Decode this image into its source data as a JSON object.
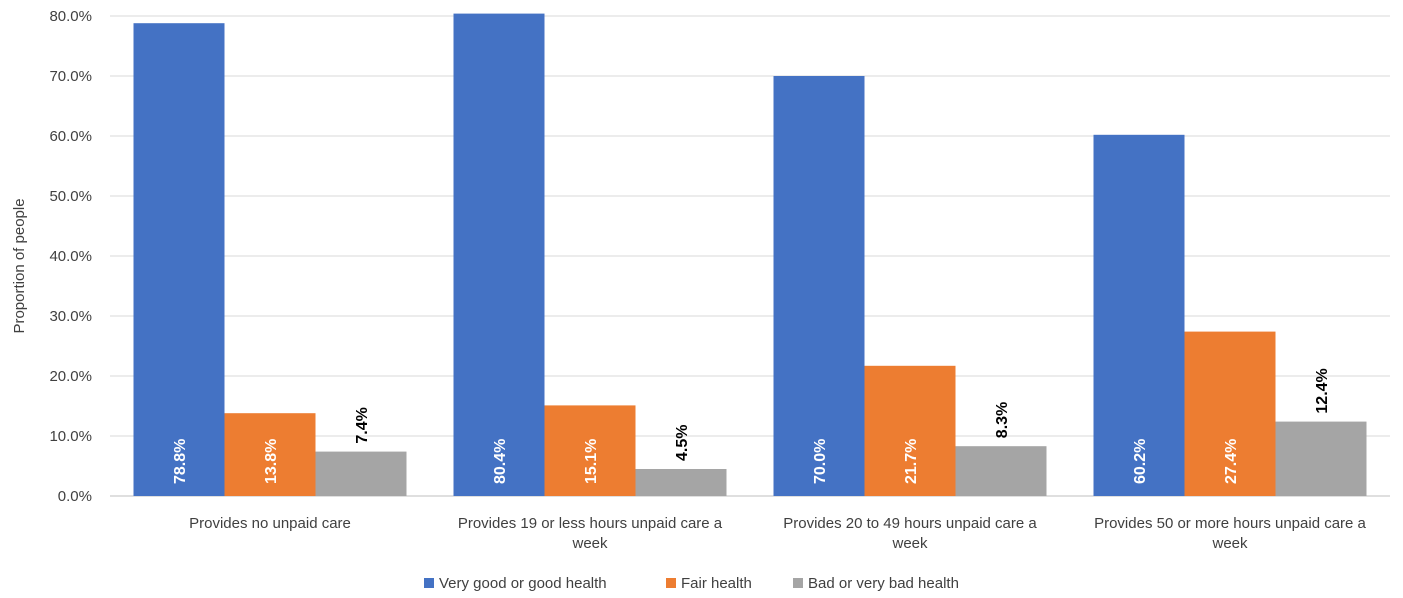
{
  "chart_data": {
    "type": "bar",
    "ylabel": "Proportion of people",
    "ylim": [
      0,
      80
    ],
    "yticks": [
      0,
      10,
      20,
      30,
      40,
      50,
      60,
      70,
      80
    ],
    "grid": true,
    "legend_position": "bottom",
    "categories": [
      [
        "Provides no unpaid care"
      ],
      [
        "Provides 19 or less hours unpaid care a",
        "week"
      ],
      [
        "Provides 20 to 49 hours unpaid care a",
        "week"
      ],
      [
        "Provides 50 or more hours unpaid care a",
        "week"
      ]
    ],
    "series": [
      {
        "name": "Very good or good health",
        "color": "#4472C4",
        "values": [
          78.8,
          80.4,
          70.0,
          60.2
        ],
        "labels": [
          "78.8%",
          "80.4%",
          "70.0%",
          "60.2%"
        ],
        "label_color": "#ffffff",
        "label_inside": true
      },
      {
        "name": "Fair health",
        "color": "#ED7D31",
        "values": [
          13.8,
          15.1,
          21.7,
          27.4
        ],
        "labels": [
          "13.8%",
          "15.1%",
          "21.7%",
          "27.4%"
        ],
        "label_color": "#ffffff",
        "label_inside": true
      },
      {
        "name": "Bad or very bad health",
        "color": "#A5A5A5",
        "values": [
          7.4,
          4.5,
          8.3,
          12.4
        ],
        "labels": [
          "7.4%",
          "4.5%",
          "8.3%",
          "12.4%"
        ],
        "label_color": "#000000",
        "label_inside": false
      }
    ]
  }
}
